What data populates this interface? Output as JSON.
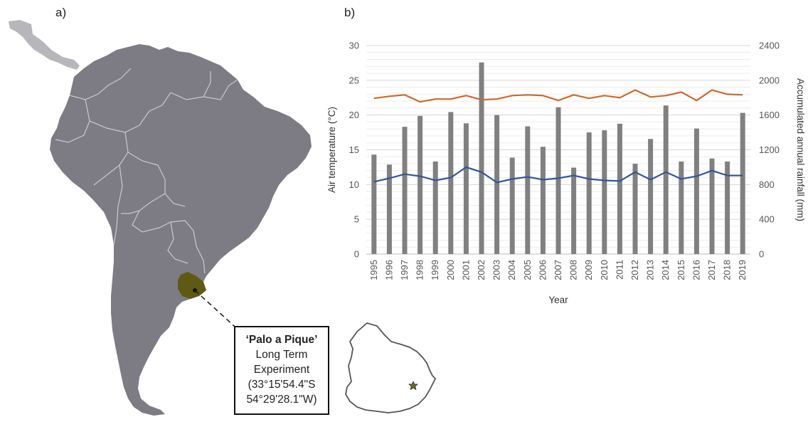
{
  "panels": {
    "a": "a)",
    "b": "b)"
  },
  "callout": {
    "title": "‘Palo a Pique’",
    "line1": "Long Term",
    "line2": "Experiment",
    "coord1": "(33°15'54.4\"S",
    "coord2": "54°29'28.1\"W)"
  },
  "colors": {
    "land": "#7d7c85",
    "land_light": "#b7b7bb",
    "borders": "#c9c9cf",
    "uruguay": "#5e5a14",
    "bars": "#808080",
    "series_orange": "#cc6a2a",
    "series_blue": "#35559a",
    "star": "#6b6a2a"
  },
  "icons": {
    "site_marker": "star-marker-icon"
  },
  "chart_data": {
    "type": "bar",
    "categories": [
      "1995",
      "1996",
      "1997",
      "1998",
      "1999",
      "2000",
      "2001",
      "2002",
      "2003",
      "2004",
      "2005",
      "2006",
      "2007",
      "2008",
      "2009",
      "2010",
      "2011",
      "2012",
      "2013",
      "2014",
      "2015",
      "2016",
      "2017",
      "2018",
      "2019"
    ],
    "bars": {
      "axis": "right",
      "values": [
        1145,
        1030,
        1465,
        1590,
        1065,
        1635,
        1505,
        2205,
        1600,
        1110,
        1470,
        1235,
        1690,
        995,
        1400,
        1425,
        1500,
        1040,
        1325,
        1710,
        1065,
        1445,
        1100,
        1065,
        1625
      ]
    },
    "series": [
      {
        "axis": "left",
        "color": "#cc6a2a",
        "values": [
          22.4,
          22.7,
          22.9,
          21.9,
          22.3,
          22.3,
          22.8,
          22.2,
          22.3,
          22.8,
          22.9,
          22.8,
          22.1,
          22.9,
          22.4,
          22.8,
          22.5,
          23.6,
          22.6,
          22.8,
          23.3,
          22.1,
          23.6,
          23.0,
          22.9
        ]
      },
      {
        "axis": "left",
        "color": "#35559a",
        "values": [
          10.4,
          10.9,
          11.5,
          11.2,
          10.6,
          11.0,
          12.5,
          11.8,
          10.3,
          10.8,
          11.1,
          10.7,
          10.9,
          11.3,
          10.8,
          10.6,
          10.5,
          11.8,
          10.7,
          11.8,
          10.8,
          11.2,
          12.0,
          11.3,
          11.3
        ]
      }
    ],
    "ylim_left": [
      0,
      30
    ],
    "yticks_left": [
      0,
      5,
      10,
      15,
      20,
      25,
      30
    ],
    "ylim_right": [
      0,
      2400
    ],
    "yticks_right": [
      0,
      400,
      800,
      1200,
      1600,
      2000,
      2400
    ],
    "xlabel": "Year",
    "ylabel_left": "Air temperature (°C)",
    "ylabel_right": "Accumulated annual rainfall (mm)",
    "grid": true
  }
}
